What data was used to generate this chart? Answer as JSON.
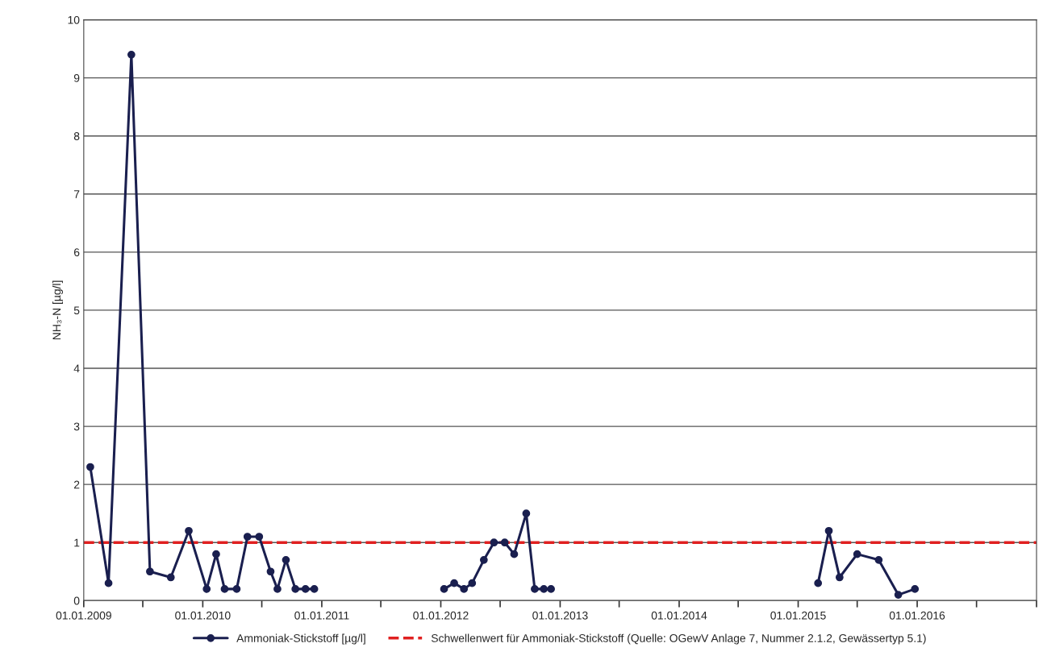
{
  "chart_data": {
    "type": "line",
    "ylabel": "NH₃-N [µg/l]",
    "xlim": [
      "2009-01-01",
      "2017-01-01"
    ],
    "xticks": [
      {
        "value": "2009-01-01",
        "label": "01.01.2009"
      },
      {
        "value": "2009-07-01",
        "label": null
      },
      {
        "value": "2010-01-01",
        "label": "01.01.2010"
      },
      {
        "value": "2010-07-01",
        "label": null
      },
      {
        "value": "2011-01-01",
        "label": "01.01.2011"
      },
      {
        "value": "2011-07-01",
        "label": null
      },
      {
        "value": "2012-01-01",
        "label": "01.01.2012"
      },
      {
        "value": "2012-07-01",
        "label": null
      },
      {
        "value": "2013-01-01",
        "label": "01.01.2013"
      },
      {
        "value": "2013-07-01",
        "label": null
      },
      {
        "value": "2014-01-01",
        "label": "01.01.2014"
      },
      {
        "value": "2014-07-01",
        "label": null
      },
      {
        "value": "2015-01-01",
        "label": "01.01.2015"
      },
      {
        "value": "2015-07-01",
        "label": null
      },
      {
        "value": "2016-01-01",
        "label": "01.01.2016"
      },
      {
        "value": "2016-07-01",
        "label": null
      },
      {
        "value": "2017-01-01",
        "label": null
      }
    ],
    "ylim": [
      0,
      10
    ],
    "yticks": [
      0,
      1,
      2,
      3,
      4,
      5,
      6,
      7,
      8,
      9,
      10
    ],
    "grid": "y",
    "legend": "bottom",
    "marker": "circle",
    "line_style": "solid",
    "series": [
      {
        "name": "Ammoniak-Stickstoff [µg/l]",
        "color": "#1a1f4f",
        "x": [
          "2009-01-21",
          "2009-03-18",
          "2009-05-27",
          "2009-07-23",
          "2009-09-25",
          "2009-11-19",
          "2010-01-13",
          "2010-02-11",
          "2010-03-09",
          "2010-04-15",
          "2010-05-18",
          "2010-06-23",
          "2010-07-28",
          "2010-08-18",
          "2010-09-13",
          "2010-10-12",
          "2010-11-12",
          "2010-12-09",
          "2011-06-15",
          "2012-01-11",
          "2012-02-11",
          "2012-03-12",
          "2012-04-06",
          "2012-05-12",
          "2012-06-12",
          "2012-07-15",
          "2012-08-13",
          "2012-09-19",
          "2012-10-15",
          "2012-11-12",
          "2012-12-04",
          "2014-01-15",
          "2015-03-03",
          "2015-04-05",
          "2015-05-08",
          "2015-07-01",
          "2015-09-05",
          "2015-11-04",
          "2015-12-25"
        ],
        "values": [
          2.3,
          0.3,
          9.4,
          0.5,
          0.4,
          1.2,
          0.2,
          0.8,
          0.2,
          0.2,
          1.1,
          1.1,
          0.5,
          0.2,
          0.7,
          0.2,
          0.2,
          0.2,
          null,
          0.2,
          0.3,
          0.2,
          0.3,
          0.7,
          1.0,
          1.0,
          0.8,
          1.5,
          0.2,
          0.2,
          0.2,
          null,
          0.3,
          1.2,
          0.4,
          0.8,
          0.7,
          0.1,
          0.2
        ]
      }
    ],
    "ref_lines": [
      {
        "axis": "y",
        "value": 1,
        "label": "Schwellenwert für Ammoniak-Stickstoff (Quelle: OGewV Anlage 7, Nummer 2.1.2, Gewässertyp 5.1)",
        "color": "#e02020",
        "line_style": "dashed"
      }
    ]
  }
}
